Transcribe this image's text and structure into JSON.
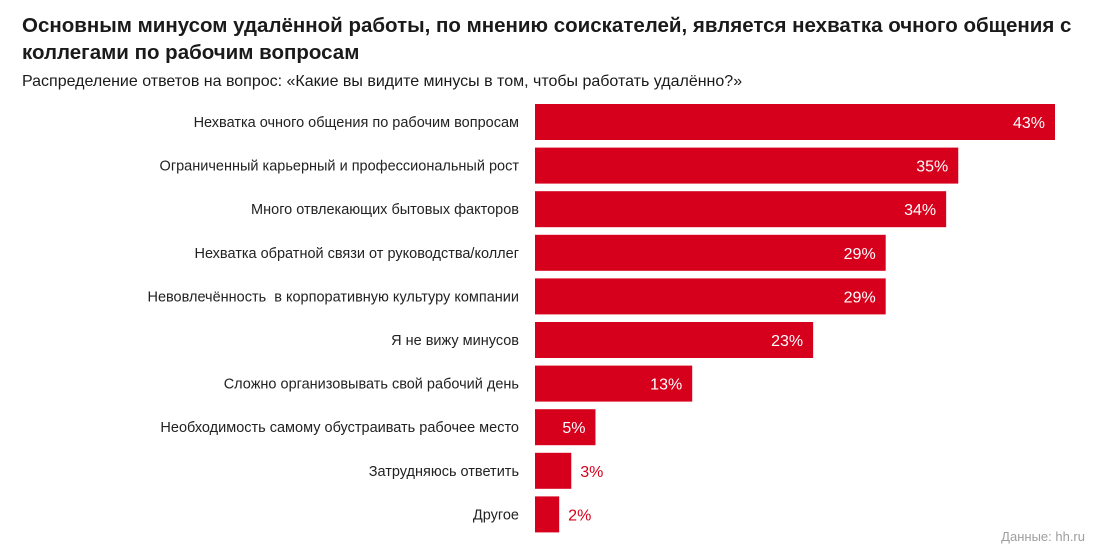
{
  "title": "Основным минусом удалённой работы, по мнению соискателей, является нехватка очного общения с коллегами по рабочим вопросам",
  "subtitle": "Распределение ответов на вопрос: «Какие вы видите минусы в том, чтобы работать удалённо?»",
  "source": "Данные: hh.ru",
  "colors": {
    "bar": "#d6001c",
    "label_inside": "#ffffff",
    "label_outside": "#d6001c",
    "text": "#222222"
  },
  "chart_data": {
    "type": "bar",
    "orientation": "horizontal",
    "categories": [
      "Нехватка очного общения по рабочим вопросам",
      "Ограниченный карьерный и профессиональный рост",
      "Много отвлекающих бытовых факторов",
      "Нехватка обратной связи от руководства/коллег",
      "Невовлечённость  в корпоративную культуру компании",
      "Я не вижу минусов",
      "Сложно организовывать свой рабочий день",
      "Необходимость самому обустраивать рабочее место",
      "Затрудняюсь ответить",
      "Другое"
    ],
    "values": [
      43,
      35,
      34,
      29,
      29,
      23,
      13,
      5,
      3,
      2
    ],
    "value_labels": [
      "43%",
      "35%",
      "34%",
      "29%",
      "29%",
      "23%",
      "13%",
      "5%",
      "3%",
      "2%"
    ],
    "unit": "%",
    "xlim": [
      0,
      43
    ],
    "grid": false,
    "legend": "none"
  }
}
